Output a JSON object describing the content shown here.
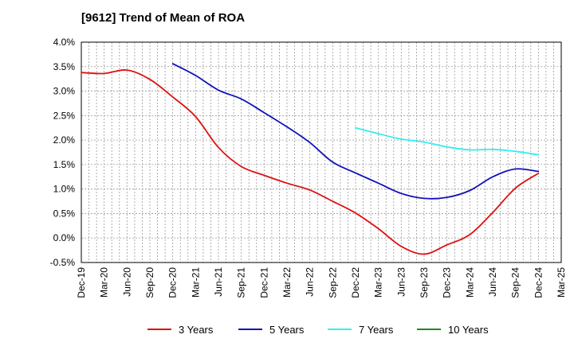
{
  "chart_data": {
    "type": "line",
    "title": "[9612]  Trend of Mean of ROA",
    "xlabel": "",
    "ylabel": "",
    "ylim": [
      -0.5,
      4.0
    ],
    "y_ticks": [
      -0.5,
      0.0,
      0.5,
      1.0,
      1.5,
      2.0,
      2.5,
      3.0,
      3.5,
      4.0
    ],
    "y_tick_labels": [
      "-0.5%",
      "0.0%",
      "0.5%",
      "1.0%",
      "1.5%",
      "2.0%",
      "2.5%",
      "3.0%",
      "3.5%",
      "4.0%"
    ],
    "x_tick_labels": [
      "Dec-19",
      "Mar-20",
      "Jun-20",
      "Sep-20",
      "Dec-20",
      "Mar-21",
      "Jun-21",
      "Sep-21",
      "Dec-21",
      "Mar-22",
      "Jun-22",
      "Sep-22",
      "Dec-22",
      "Mar-23",
      "Jun-23",
      "Sep-23",
      "Dec-23",
      "Mar-24",
      "Jun-24",
      "Sep-24",
      "Dec-24",
      "Mar-25"
    ],
    "grid": true,
    "legend_position": "bottom",
    "series": [
      {
        "name": "3 Years",
        "color": "#dd1111",
        "start_index": 0,
        "values": [
          3.38,
          3.36,
          3.43,
          3.24,
          2.88,
          2.48,
          1.85,
          1.46,
          1.28,
          1.12,
          0.98,
          0.75,
          0.51,
          0.19,
          -0.17,
          -0.33,
          -0.14,
          0.07,
          0.52,
          1.02,
          1.32
        ]
      },
      {
        "name": "5 Years",
        "color": "#1111bb",
        "start_index": 4,
        "values": [
          3.56,
          3.32,
          3.02,
          2.84,
          2.56,
          2.27,
          1.95,
          1.55,
          1.33,
          1.12,
          0.91,
          0.81,
          0.83,
          0.97,
          1.25,
          1.41,
          1.36
        ]
      },
      {
        "name": "7 Years",
        "color": "#33eeee",
        "start_index": 12,
        "values": [
          2.25,
          2.13,
          2.02,
          1.96,
          1.86,
          1.8,
          1.81,
          1.77,
          1.7
        ]
      },
      {
        "name": "10 Years",
        "color": "#228822",
        "start_index": 0,
        "values": []
      }
    ]
  }
}
